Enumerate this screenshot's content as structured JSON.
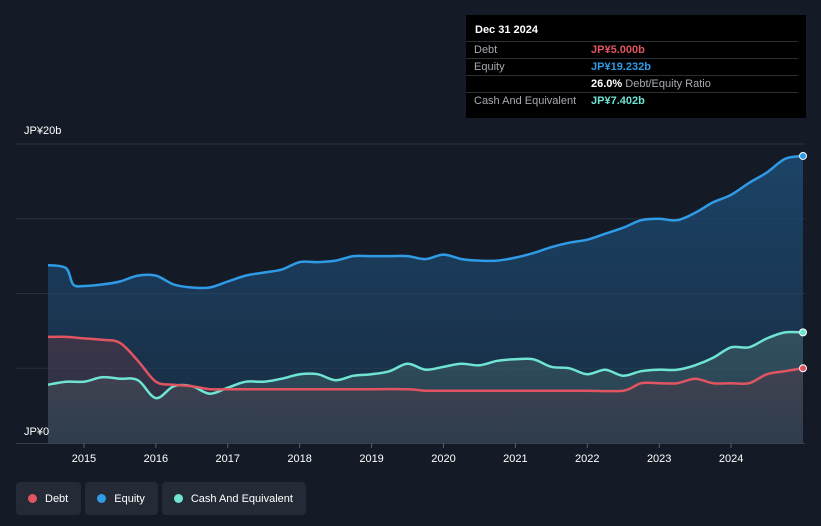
{
  "tooltip": {
    "date": "Dec 31 2024",
    "debt_label": "Debt",
    "debt_value": "JP¥5.000b",
    "equity_label": "Equity",
    "equity_value": "JP¥19.232b",
    "ratio_value": "26.0%",
    "ratio_label": "Debt/Equity Ratio",
    "cash_label": "Cash And Equivalent",
    "cash_value": "JP¥7.402b"
  },
  "legend": {
    "debt": "Debt",
    "equity": "Equity",
    "cash": "Cash And Equivalent"
  },
  "colors": {
    "debt": "#e05561",
    "equity": "#2f9ae6",
    "cash": "#6fe4d3",
    "background": "#151b26"
  },
  "chart_data": {
    "type": "area",
    "title": "",
    "y_unit": "JP¥ billions",
    "ylim": [
      0,
      20
    ],
    "y_tick_labels": [
      {
        "value": 20,
        "label": "JP¥20b"
      },
      {
        "value": 0,
        "label": "JP¥0"
      }
    ],
    "x_tick_labels": [
      {
        "value": 2015.0,
        "label": "2015"
      },
      {
        "value": 2016.0,
        "label": "2016"
      },
      {
        "value": 2017.0,
        "label": "2017"
      },
      {
        "value": 2018.0,
        "label": "2018"
      },
      {
        "value": 2019.0,
        "label": "2019"
      },
      {
        "value": 2020.0,
        "label": "2020"
      },
      {
        "value": 2021.0,
        "label": "2021"
      },
      {
        "value": 2022.0,
        "label": "2022"
      },
      {
        "value": 2023.0,
        "label": "2023"
      },
      {
        "value": 2024.0,
        "label": "2024"
      }
    ],
    "xlim": [
      2014.5,
      2025.0
    ],
    "series": [
      {
        "name": "Equity",
        "x": [
          2014.5,
          2014.75,
          2014.85,
          2015.0,
          2015.25,
          2015.5,
          2015.75,
          2016.0,
          2016.25,
          2016.5,
          2016.75,
          2017.0,
          2017.25,
          2017.5,
          2017.75,
          2018.0,
          2018.25,
          2018.5,
          2018.75,
          2019.0,
          2019.25,
          2019.5,
          2019.75,
          2020.0,
          2020.25,
          2020.5,
          2020.75,
          2021.0,
          2021.25,
          2021.5,
          2021.75,
          2022.0,
          2022.25,
          2022.5,
          2022.75,
          2023.0,
          2023.25,
          2023.5,
          2023.75,
          2024.0,
          2024.25,
          2024.5,
          2024.75,
          2025.0
        ],
        "values": [
          11.9,
          11.7,
          10.6,
          10.5,
          10.6,
          10.8,
          11.2,
          11.2,
          10.6,
          10.4,
          10.4,
          10.8,
          11.2,
          11.4,
          11.6,
          12.1,
          12.1,
          12.2,
          12.5,
          12.5,
          12.5,
          12.5,
          12.3,
          12.6,
          12.3,
          12.2,
          12.2,
          12.4,
          12.7,
          13.1,
          13.4,
          13.6,
          14.0,
          14.4,
          14.9,
          15.0,
          14.9,
          15.4,
          16.1,
          16.6,
          17.4,
          18.1,
          19.0,
          19.2
        ]
      },
      {
        "name": "Debt",
        "x": [
          2014.5,
          2014.75,
          2015.0,
          2015.25,
          2015.5,
          2015.75,
          2016.0,
          2016.25,
          2016.5,
          2016.75,
          2017.0,
          2017.5,
          2018.0,
          2018.5,
          2019.0,
          2019.5,
          2019.75,
          2020.0,
          2020.5,
          2021.0,
          2021.5,
          2022.0,
          2022.5,
          2022.75,
          2023.0,
          2023.25,
          2023.5,
          2023.75,
          2024.0,
          2024.25,
          2024.5,
          2024.75,
          2025.0
        ],
        "values": [
          7.1,
          7.1,
          7.0,
          6.9,
          6.7,
          5.5,
          4.1,
          3.9,
          3.8,
          3.6,
          3.6,
          3.6,
          3.6,
          3.6,
          3.6,
          3.6,
          3.5,
          3.5,
          3.5,
          3.5,
          3.5,
          3.5,
          3.5,
          4.0,
          4.0,
          4.0,
          4.3,
          4.0,
          4.0,
          4.0,
          4.6,
          4.8,
          5.0
        ]
      },
      {
        "name": "Cash And Equivalent",
        "x": [
          2014.5,
          2014.75,
          2015.0,
          2015.25,
          2015.5,
          2015.75,
          2016.0,
          2016.25,
          2016.5,
          2016.75,
          2017.0,
          2017.25,
          2017.5,
          2017.75,
          2018.0,
          2018.25,
          2018.5,
          2018.75,
          2019.0,
          2019.25,
          2019.5,
          2019.75,
          2020.0,
          2020.25,
          2020.5,
          2020.75,
          2021.0,
          2021.25,
          2021.5,
          2021.75,
          2022.0,
          2022.25,
          2022.5,
          2022.75,
          2023.0,
          2023.25,
          2023.5,
          2023.75,
          2024.0,
          2024.25,
          2024.5,
          2024.75,
          2025.0
        ],
        "values": [
          3.9,
          4.1,
          4.1,
          4.4,
          4.3,
          4.2,
          3.0,
          3.8,
          3.8,
          3.3,
          3.7,
          4.1,
          4.1,
          4.3,
          4.6,
          4.6,
          4.2,
          4.5,
          4.6,
          4.8,
          5.3,
          4.9,
          5.1,
          5.3,
          5.2,
          5.5,
          5.6,
          5.6,
          5.1,
          5.0,
          4.6,
          4.9,
          4.5,
          4.8,
          4.9,
          4.9,
          5.2,
          5.7,
          6.4,
          6.4,
          7.0,
          7.4,
          7.4
        ]
      }
    ]
  }
}
